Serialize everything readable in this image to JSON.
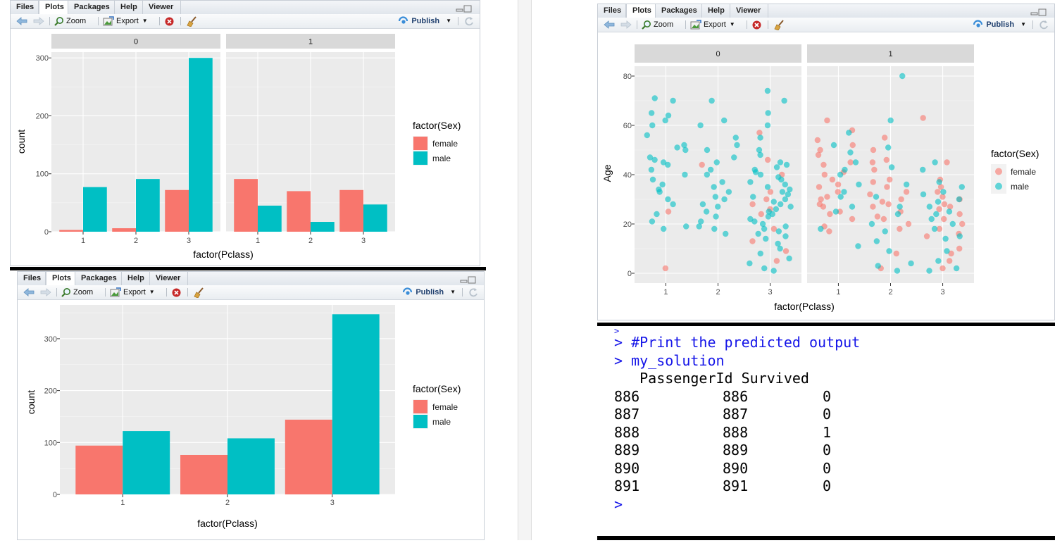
{
  "ui": {
    "tabs": [
      "Files",
      "Plots",
      "Packages",
      "Help",
      "Viewer"
    ],
    "zoom": "Zoom",
    "export": "Export",
    "publish": "Publish"
  },
  "chart_data": [
    {
      "type": "bar",
      "facets": [
        "0",
        "1"
      ],
      "categories": [
        "1",
        "2",
        "3"
      ],
      "series": [
        {
          "name": "female",
          "color": "#F8766D",
          "values_facet_0": [
            3,
            6,
            72
          ],
          "values_facet_1": [
            91,
            70,
            72
          ]
        },
        {
          "name": "male",
          "color": "#00BFC4",
          "values_facet_0": [
            77,
            91,
            300
          ],
          "values_facet_1": [
            45,
            17,
            47
          ]
        }
      ],
      "yticks": [
        0,
        100,
        200,
        300
      ],
      "ylim": [
        0,
        300
      ],
      "xlabel": "factor(Pclass)",
      "ylabel": "count",
      "legend_title": "factor(Sex)",
      "legend_position": "right"
    },
    {
      "type": "bar",
      "categories": [
        "1",
        "2",
        "3"
      ],
      "series": [
        {
          "name": "female",
          "color": "#F8766D",
          "values": [
            94,
            76,
            144
          ]
        },
        {
          "name": "male",
          "color": "#00BFC4",
          "values": [
            122,
            108,
            347
          ]
        }
      ],
      "yticks": [
        0,
        100,
        200,
        300
      ],
      "ylim": [
        0,
        347
      ],
      "xlabel": "factor(Pclass)",
      "ylabel": "count",
      "legend_title": "factor(Sex)",
      "legend_position": "right"
    },
    {
      "type": "scatter",
      "facets": [
        "0",
        "1"
      ],
      "x_categories": [
        "1",
        "2",
        "3"
      ],
      "series": [
        {
          "name": "female",
          "color": "#F8766D",
          "points_facet_0": [
            [
              1,
              2
            ],
            [
              1,
              25
            ],
            [
              2,
              44
            ],
            [
              3,
              57
            ],
            [
              3,
              46
            ],
            [
              3,
              33
            ],
            [
              3,
              28
            ],
            [
              3,
              9
            ],
            [
              3,
              18
            ],
            [
              3,
              30
            ],
            [
              3,
              24
            ],
            [
              3,
              40
            ],
            [
              3,
              5
            ],
            [
              3,
              13
            ],
            [
              3,
              26
            ]
          ],
          "points_facet_1": [
            [
              1,
              62
            ],
            [
              1,
              58
            ],
            [
              1,
              40
            ],
            [
              1,
              35
            ],
            [
              1,
              30
            ],
            [
              1,
              48
            ],
            [
              1,
              25
            ],
            [
              1,
              22
            ],
            [
              1,
              52
            ],
            [
              1,
              44
            ],
            [
              1,
              36
            ],
            [
              1,
              28
            ],
            [
              1,
              17
            ],
            [
              1,
              33
            ],
            [
              1,
              50
            ],
            [
              1,
              38
            ],
            [
              1,
              31
            ],
            [
              1,
              24
            ],
            [
              1,
              45
            ],
            [
              1,
              27
            ],
            [
              1,
              19
            ],
            [
              1,
              54
            ],
            [
              1,
              41
            ],
            [
              2,
              50
            ],
            [
              2,
              46
            ],
            [
              2,
              42
            ],
            [
              2,
              38
            ],
            [
              2,
              35
            ],
            [
              2,
              32
            ],
            [
              2,
              30
            ],
            [
              2,
              28
            ],
            [
              2,
              25
            ],
            [
              2,
              22
            ],
            [
              2,
              20
            ],
            [
              2,
              18
            ],
            [
              2,
              8
            ],
            [
              2,
              2
            ],
            [
              2,
              55
            ],
            [
              2,
              27
            ],
            [
              2,
              33
            ],
            [
              2,
              37
            ],
            [
              2,
              45
            ],
            [
              2,
              23
            ],
            [
              2,
              29
            ],
            [
              3,
              63
            ],
            [
              3,
              45
            ],
            [
              3,
              38
            ],
            [
              3,
              33
            ],
            [
              3,
              28
            ],
            [
              3,
              24
            ],
            [
              3,
              22
            ],
            [
              3,
              18
            ],
            [
              3,
              15
            ],
            [
              3,
              10
            ],
            [
              3,
              5
            ],
            [
              3,
              2
            ],
            [
              3,
              30
            ],
            [
              3,
              27
            ],
            [
              3,
              35
            ],
            [
              3,
              20
            ],
            [
              3,
              16
            ],
            [
              3,
              26
            ],
            [
              3,
              31
            ],
            [
              3,
              8
            ]
          ]
        },
        {
          "name": "male",
          "color": "#00BFC4",
          "points_facet_0": [
            [
              1,
              71
            ],
            [
              1,
              70
            ],
            [
              1,
              65
            ],
            [
              1,
              64
            ],
            [
              1,
              62
            ],
            [
              1,
              60
            ],
            [
              1,
              56
            ],
            [
              1,
              52
            ],
            [
              1,
              50
            ],
            [
              1,
              47
            ],
            [
              1,
              45
            ],
            [
              1,
              40
            ],
            [
              1,
              38
            ],
            [
              1,
              36
            ],
            [
              1,
              30
            ],
            [
              1,
              28
            ],
            [
              1,
              24
            ],
            [
              1,
              21
            ],
            [
              1,
              19
            ],
            [
              1,
              18
            ],
            [
              1,
              46
            ],
            [
              1,
              44
            ],
            [
              1,
              34
            ],
            [
              1,
              42
            ],
            [
              1,
              51
            ],
            [
              1,
              33
            ],
            [
              2,
              70
            ],
            [
              2,
              60
            ],
            [
              2,
              55
            ],
            [
              2,
              50
            ],
            [
              2,
              47
            ],
            [
              2,
              45
            ],
            [
              2,
              40
            ],
            [
              2,
              37
            ],
            [
              2,
              35
            ],
            [
              2,
              33
            ],
            [
              2,
              30
            ],
            [
              2,
              28
            ],
            [
              2,
              25
            ],
            [
              2,
              23
            ],
            [
              2,
              21
            ],
            [
              2,
              19
            ],
            [
              2,
              18
            ],
            [
              2,
              16
            ],
            [
              2,
              62
            ],
            [
              2,
              52
            ],
            [
              2,
              42
            ],
            [
              2,
              31
            ],
            [
              2,
              27
            ],
            [
              3,
              74
            ],
            [
              3,
              70
            ],
            [
              3,
              65
            ],
            [
              3,
              60
            ],
            [
              3,
              55
            ],
            [
              3,
              50
            ],
            [
              3,
              45
            ],
            [
              3,
              42
            ],
            [
              3,
              40
            ],
            [
              3,
              38
            ],
            [
              3,
              36
            ],
            [
              3,
              34
            ],
            [
              3,
              32
            ],
            [
              3,
              30
            ],
            [
              3,
              28
            ],
            [
              3,
              26
            ],
            [
              3,
              24
            ],
            [
              3,
              22
            ],
            [
              3,
              20
            ],
            [
              3,
              18
            ],
            [
              3,
              16
            ],
            [
              3,
              14
            ],
            [
              3,
              12
            ],
            [
              3,
              10
            ],
            [
              3,
              8
            ],
            [
              3,
              6
            ],
            [
              3,
              4
            ],
            [
              3,
              2
            ],
            [
              3,
              1
            ],
            [
              3,
              35
            ],
            [
              3,
              31
            ],
            [
              3,
              27
            ],
            [
              3,
              23
            ],
            [
              3,
              19
            ],
            [
              3,
              29
            ],
            [
              3,
              25
            ],
            [
              3,
              21
            ],
            [
              3,
              33
            ],
            [
              3,
              44
            ],
            [
              3,
              48
            ],
            [
              3,
              37
            ],
            [
              3,
              41
            ],
            [
              3,
              17
            ],
            [
              3,
              39
            ],
            [
              3,
              43
            ],
            [
              3,
              15
            ]
          ],
          "points_facet_1": [
            [
              1,
              49
            ],
            [
              1,
              45
            ],
            [
              1,
              40
            ],
            [
              1,
              36
            ],
            [
              1,
              33
            ],
            [
              1,
              27
            ],
            [
              1,
              25
            ],
            [
              1,
              18
            ],
            [
              1,
              11
            ],
            [
              1,
              31
            ],
            [
              1,
              42
            ],
            [
              1,
              52
            ],
            [
              1,
              57
            ],
            [
              2,
              80
            ],
            [
              2,
              62
            ],
            [
              2,
              51
            ],
            [
              2,
              36
            ],
            [
              2,
              27
            ],
            [
              2,
              20
            ],
            [
              2,
              17
            ],
            [
              2,
              9
            ],
            [
              2,
              4
            ],
            [
              2,
              1
            ],
            [
              2,
              31
            ],
            [
              2,
              24
            ],
            [
              2,
              13
            ],
            [
              2,
              3
            ],
            [
              2,
              43
            ],
            [
              3,
              45
            ],
            [
              3,
              42
            ],
            [
              3,
              35
            ],
            [
              3,
              33
            ],
            [
              3,
              32
            ],
            [
              3,
              29
            ],
            [
              3,
              27
            ],
            [
              3,
              25
            ],
            [
              3,
              22
            ],
            [
              3,
              20
            ],
            [
              3,
              18
            ],
            [
              3,
              15
            ],
            [
              3,
              9
            ],
            [
              3,
              5
            ],
            [
              3,
              2
            ],
            [
              3,
              1
            ],
            [
              3,
              24
            ],
            [
              3,
              37
            ],
            [
              3,
              30
            ],
            [
              3,
              14
            ]
          ]
        }
      ],
      "yticks": [
        0,
        20,
        40,
        60,
        80
      ],
      "ylim": [
        0,
        80
      ],
      "xlabel": "factor(Pclass)",
      "ylabel": "Age",
      "legend_title": "factor(Sex)",
      "legend_position": "right"
    }
  ],
  "console": {
    "lines": [
      {
        "prompt": ">",
        "text": " #Print the predicted output"
      },
      {
        "prompt": ">",
        "text": " my_solution"
      }
    ],
    "table_header": "   PassengerId Survived",
    "rows": [
      {
        "row": "886",
        "id": "886",
        "survived": "0"
      },
      {
        "row": "887",
        "id": "887",
        "survived": "0"
      },
      {
        "row": "888",
        "id": "888",
        "survived": "1"
      },
      {
        "row": "889",
        "id": "889",
        "survived": "0"
      },
      {
        "row": "890",
        "id": "890",
        "survived": "0"
      },
      {
        "row": "891",
        "id": "891",
        "survived": "0"
      }
    ],
    "final_prompt": ">"
  }
}
